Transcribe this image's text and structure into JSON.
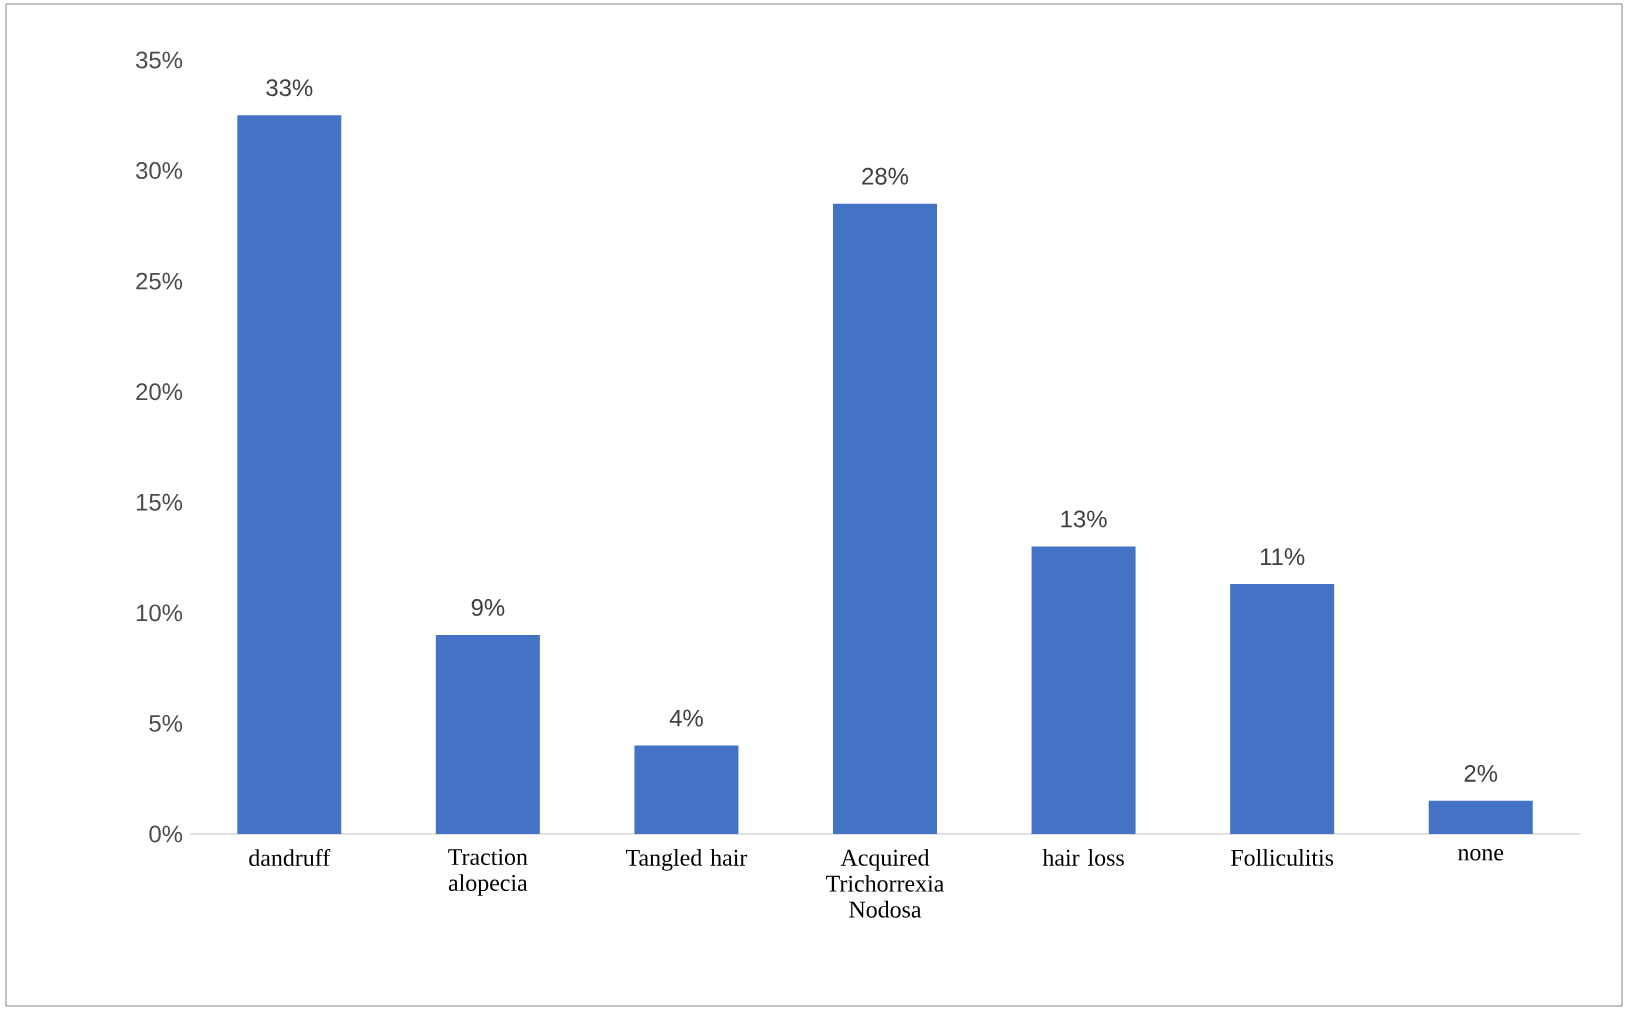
{
  "chart_data": {
    "type": "bar",
    "categories": [
      "dandruff",
      "Traction alopecia",
      "Tangled hair",
      "Acquired Trichorrexia Nodosa",
      "hair loss",
      "Folliculitis",
      "none"
    ],
    "values": [
      32.5,
      9,
      4,
      28.5,
      13,
      11.3,
      1.5
    ],
    "value_labels": [
      "33%",
      "9%",
      "4%",
      "28%",
      "13%",
      "11%",
      "2%"
    ],
    "color": "#4472c4",
    "ylim": [
      0,
      35
    ],
    "yticks": [
      {
        "value": 0,
        "label": "0%"
      },
      {
        "value": 5,
        "label": "5%"
      },
      {
        "value": 10,
        "label": "10%"
      },
      {
        "value": 15,
        "label": "15%"
      },
      {
        "value": 20,
        "label": "20%"
      },
      {
        "value": 25,
        "label": "25%"
      },
      {
        "value": 30,
        "label": "30%"
      },
      {
        "value": 35,
        "label": "35%"
      }
    ],
    "grid": false
  }
}
